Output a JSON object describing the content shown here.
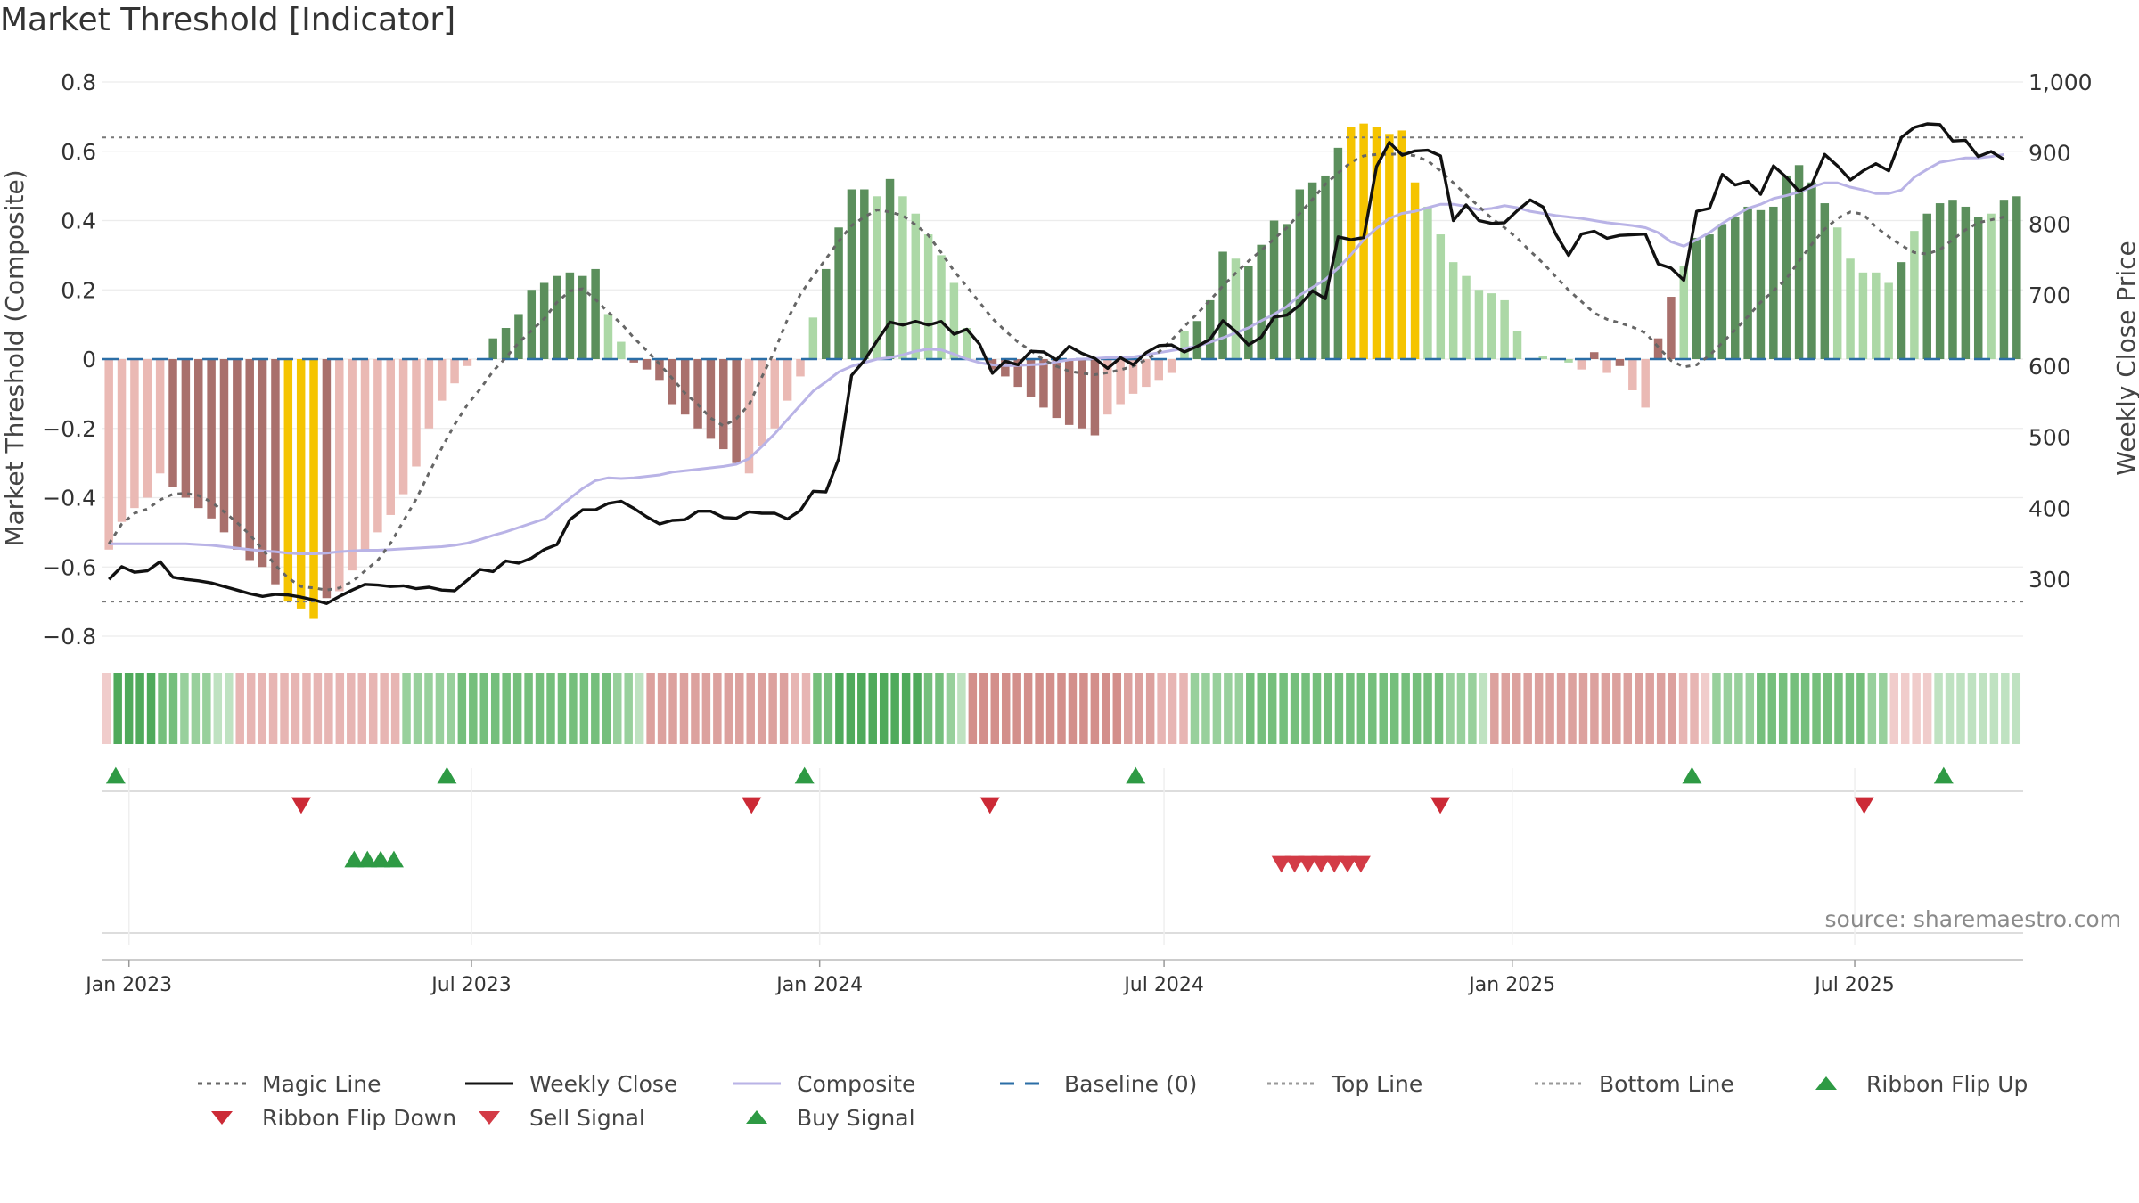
{
  "title": "Market Threshold [Indicator]",
  "source_text": "source: sharemaestro.com",
  "colors": {
    "close": "#111111",
    "composite": "#b9b3e6",
    "magic": "#666666",
    "baseline": "#2b6ea6",
    "threshold": "#777777",
    "gold": "#f5c400",
    "bar_green_dark": "#5b8f5c",
    "bar_green_light": "#acd8a6",
    "bar_red_dark": "#a9706c",
    "bar_red_light": "#eab9b4",
    "signal_up": "#2e9a44",
    "signal_down": "#d33b46"
  },
  "chart_data": {
    "type": "bar+line",
    "x_ticks": [
      "Jan 2023",
      "Jul 2023",
      "Jan 2024",
      "Jul 2024",
      "Jan 2025",
      "Jul 2025"
    ],
    "x_tick_dates": [
      "2023-01-01",
      "2023-07-01",
      "2024-01-01",
      "2024-07-01",
      "2025-01-01",
      "2025-07-01"
    ],
    "x_range": [
      "2022-12-18",
      "2025-09-28"
    ],
    "left_axis": {
      "label": "Market Threshold (Composite)",
      "range": [
        -0.8,
        0.8
      ],
      "ticks": [
        "−0.8",
        "−0.6",
        "−0.4",
        "−0.2",
        "0",
        "0.2",
        "0.4",
        "0.6",
        "0.8"
      ]
    },
    "right_axis": {
      "label": "Weekly Close Price",
      "range": [
        220,
        1000
      ],
      "ticks": [
        "300",
        "400",
        "500",
        "600",
        "700",
        "800",
        "900",
        "1,000"
      ]
    },
    "top_line": 0.64,
    "bottom_line": -0.7,
    "baseline": 0,
    "series": [
      {
        "name": "Composite",
        "values": [
          -0.55,
          -0.47,
          -0.43,
          -0.4,
          -0.33,
          -0.37,
          -0.4,
          -0.43,
          -0.46,
          -0.5,
          -0.55,
          -0.58,
          -0.6,
          -0.65,
          -0.7,
          -0.72,
          -0.75,
          -0.69,
          -0.67,
          -0.61,
          -0.55,
          -0.5,
          -0.45,
          -0.39,
          -0.31,
          -0.2,
          -0.12,
          -0.07,
          -0.02,
          0,
          0.06,
          0.09,
          0.13,
          0.2,
          0.22,
          0.24,
          0.25,
          0.24,
          0.26,
          0.13,
          0.05,
          -0.01,
          -0.03,
          -0.06,
          -0.13,
          -0.16,
          -0.2,
          -0.23,
          -0.26,
          -0.3,
          -0.33,
          -0.25,
          -0.2,
          -0.12,
          -0.05,
          0.12,
          0.26,
          0.38,
          0.49,
          0.49,
          0.47,
          0.52,
          0.47,
          0.42,
          0.36,
          0.3,
          0.22,
          0.09,
          0,
          -0.03,
          -0.05,
          -0.08,
          -0.11,
          -0.14,
          -0.17,
          -0.19,
          -0.2,
          -0.22,
          -0.16,
          -0.13,
          -0.1,
          -0.08,
          -0.06,
          -0.04,
          0.08,
          0.11,
          0.17,
          0.31,
          0.29,
          0.27,
          0.33,
          0.4,
          0.39,
          0.49,
          0.51,
          0.53,
          0.61,
          0.67,
          0.68,
          0.67,
          0.65,
          0.66,
          0.51,
          0.44,
          0.36,
          0.28,
          0.24,
          0.2,
          0.19,
          0.17,
          0.08,
          0,
          0.01,
          0,
          -0.01,
          -0.03,
          0.02,
          -0.04,
          -0.02,
          -0.09,
          -0.14,
          0.06,
          0.18,
          0.27,
          0.35,
          0.36,
          0.39,
          0.41,
          0.44,
          0.43,
          0.44,
          0.53,
          0.56,
          0.51,
          0.45,
          0.38,
          0.29,
          0.25,
          0.25,
          0.22,
          0.28,
          0.37,
          0.42,
          0.45,
          0.46,
          0.44,
          0.41,
          0.42,
          0.46,
          0.47
        ]
      },
      {
        "name": "Weekly Close",
        "values": [
          300,
          318,
          310,
          312,
          325,
          303,
          300,
          298,
          295,
          290,
          285,
          280,
          276,
          279,
          278,
          275,
          271,
          266,
          276,
          285,
          293,
          292,
          290,
          291,
          287,
          289,
          285,
          284,
          299,
          314,
          311,
          326,
          323,
          330,
          342,
          349,
          384,
          398,
          398,
          407,
          410,
          400,
          388,
          378,
          383,
          384,
          396,
          396,
          387,
          386,
          395,
          393,
          393,
          385,
          397,
          424,
          423,
          470,
          587,
          608,
          636,
          662,
          658,
          663,
          658,
          663,
          645,
          652,
          631,
          590,
          607,
          602,
          621,
          620,
          609,
          628,
          618,
          611,
          597,
          612,
          602,
          619,
          629,
          630,
          620,
          628,
          638,
          664,
          649,
          630,
          641,
          669,
          672,
          686,
          706,
          695,
          782,
          778,
          781,
          881,
          915,
          897,
          903,
          904,
          896,
          805,
          827,
          805,
          801,
          802,
          819,
          834,
          824,
          786,
          756,
          786,
          790,
          780,
          784,
          785,
          786,
          744,
          738,
          721,
          818,
          822,
          870,
          855,
          860,
          842,
          882,
          866,
          846,
          856,
          898,
          882,
          862,
          875,
          885,
          875,
          922,
          936,
          941,
          940,
          917,
          918,
          895,
          902,
          891
        ],
        "color": "#111111"
      },
      {
        "name": "Composite",
        "display": "line",
        "values": [
          350,
          350,
          350,
          350,
          350,
          350,
          350,
          349,
          348,
          346,
          344,
          342,
          340,
          339,
          337,
          336,
          336,
          337,
          339,
          340,
          341,
          341,
          342,
          343,
          344,
          345,
          346,
          348,
          351,
          356,
          362,
          367,
          373,
          379,
          385,
          399,
          414,
          428,
          439,
          443,
          442,
          443,
          445,
          447,
          451,
          453,
          455,
          457,
          459,
          462,
          470,
          487,
          505,
          525,
          545,
          565,
          578,
          592,
          600,
          605,
          610,
          612,
          616,
          621,
          624,
          623,
          617,
          610,
          605,
          602,
          601,
          601,
          602,
          603,
          606,
          609,
          610,
          611,
          612,
          612,
          613,
          616,
          619,
          622,
          625,
          628,
          634,
          640,
          647,
          654,
          664,
          673,
          684,
          700,
          711,
          722,
          738,
          757,
          778,
          794,
          808,
          815,
          818,
          823,
          828,
          828,
          825,
          820,
          822,
          826,
          823,
          818,
          815,
          812,
          810,
          808,
          805,
          802,
          800,
          798,
          795,
          788,
          775,
          769,
          778,
          788,
          801,
          812,
          822,
          828,
          836,
          840,
          845,
          852,
          858,
          858,
          852,
          848,
          843,
          843,
          848,
          866,
          877,
          887,
          890,
          893,
          893,
          895,
          898
        ]
      },
      {
        "name": "Magic Line",
        "values": [
          350,
          378,
          393,
          399,
          412,
          420,
          421,
          418,
          409,
          395,
          380,
          363,
          342,
          320,
          302,
          290,
          288,
          285,
          288,
          297,
          312,
          327,
          351,
          382,
          413,
          450,
          485,
          518,
          546,
          568,
          593,
          612,
          633,
          650,
          667,
          690,
          706,
          709,
          694,
          676,
          660,
          640,
          622,
          603,
          583,
          562,
          546,
          527,
          516,
          526,
          546,
          585,
          622,
          666,
          701,
          727,
          751,
          776,
          798,
          810,
          820,
          817,
          812,
          799,
          784,
          760,
          734,
          712,
          690,
          667,
          650,
          634,
          622,
          609,
          600,
          593,
          590,
          588,
          591,
          595,
          600,
          609,
          620,
          637,
          656,
          674,
          693,
          713,
          731,
          748,
          763,
          779,
          795,
          815,
          835,
          856,
          872,
          887,
          896,
          898,
          898,
          899,
          896,
          889,
          875,
          858,
          841,
          825,
          808,
          795,
          780,
          762,
          745,
          726,
          707,
          691,
          675,
          666,
          661,
          655,
          647,
          627,
          608,
          599,
          602,
          615,
          633,
          651,
          670,
          690,
          706,
          723,
          748,
          772,
          793,
          808,
          817,
          814,
          796,
          782,
          770,
          760,
          758,
          764,
          778,
          792,
          802,
          806,
          810
        ],
        "style": "dashed"
      }
    ],
    "bar_shades": [
      "LR",
      "LR",
      "LR",
      "LR",
      "LR",
      "DR",
      "DR",
      "DR",
      "DR",
      "DR",
      "DR",
      "DR",
      "DR",
      "DR",
      "G",
      "G",
      "G",
      "DR",
      "LR",
      "LR",
      "LR",
      "LR",
      "LR",
      "LR",
      "LR",
      "LR",
      "LR",
      "LR",
      "LR",
      "LR",
      "DG",
      "DG",
      "DG",
      "DG",
      "DG",
      "DG",
      "DG",
      "DG",
      "DG",
      "LG",
      "LG",
      "DR",
      "DR",
      "DR",
      "DR",
      "DR",
      "DR",
      "DR",
      "DR",
      "DR",
      "LR",
      "LR",
      "LR",
      "LR",
      "LR",
      "LG",
      "DG",
      "DG",
      "DG",
      "DG",
      "LG",
      "DG",
      "LG",
      "LG",
      "LG",
      "LG",
      "LG",
      "LG",
      "LR",
      "DR",
      "DR",
      "DR",
      "DR",
      "DR",
      "DR",
      "DR",
      "DR",
      "DR",
      "LR",
      "LR",
      "LR",
      "LR",
      "LR",
      "LR",
      "LG",
      "DG",
      "DG",
      "DG",
      "LG",
      "DG",
      "DG",
      "DG",
      "DG",
      "DG",
      "DG",
      "DG",
      "DG",
      "G",
      "G",
      "G",
      "G",
      "G",
      "G",
      "LG",
      "LG",
      "LG",
      "LG",
      "LG",
      "LG",
      "LG",
      "LG",
      "LG",
      "LG",
      "DG",
      "LG",
      "LR",
      "DR",
      "LR",
      "DR",
      "LR",
      "LR",
      "DR",
      "DR",
      "LG",
      "DG",
      "DG",
      "DG",
      "DG",
      "DG",
      "DG",
      "DG",
      "DG",
      "DG",
      "DG",
      "DG",
      "LG",
      "LG",
      "LG",
      "LG",
      "LG",
      "DG",
      "LG",
      "DG",
      "DG",
      "DG",
      "DG",
      "DG",
      "LG",
      "DG",
      "DG",
      "DG",
      "DG"
    ],
    "ribbon": [
      "r1",
      "g4",
      "g4",
      "g4",
      "g4",
      "g3",
      "g3",
      "g2",
      "g2",
      "g2",
      "g1",
      "g1",
      "r2",
      "r2",
      "r2",
      "r2",
      "r2",
      "r2",
      "r2",
      "r2",
      "r2",
      "r2",
      "r2",
      "r2",
      "r2",
      "r2",
      "r2",
      "g2",
      "g2",
      "g2",
      "g2",
      "g2",
      "g3",
      "g3",
      "g3",
      "g3",
      "g3",
      "g3",
      "g3",
      "g3",
      "g3",
      "g3",
      "g3",
      "g3",
      "g3",
      "g3",
      "g2",
      "g2",
      "g1",
      "r3",
      "r3",
      "r3",
      "r3",
      "r3",
      "r3",
      "r3",
      "r3",
      "r3",
      "r3",
      "r3",
      "r3",
      "r3",
      "r2",
      "r2",
      "g3",
      "g3",
      "g4",
      "g4",
      "g4",
      "g4",
      "g4",
      "g4",
      "g4",
      "g4",
      "g3",
      "g3",
      "g2",
      "g1",
      "r4",
      "r4",
      "r4",
      "r4",
      "r4",
      "r4",
      "r4",
      "r4",
      "r4",
      "r4",
      "r4",
      "r4",
      "r4",
      "r4",
      "r3",
      "r3",
      "r3",
      "r2",
      "r2",
      "r2",
      "g2",
      "g2",
      "g2",
      "g2",
      "g2",
      "g3",
      "g3",
      "g3",
      "g3",
      "g3",
      "g3",
      "g3",
      "g3",
      "g3",
      "g3",
      "g3",
      "g3",
      "g3",
      "g3",
      "g3",
      "g3",
      "g3",
      "g3",
      "g2",
      "g2",
      "g2",
      "g1",
      "r3",
      "r3",
      "r3",
      "r3",
      "r3",
      "r3",
      "r3",
      "r3",
      "r3",
      "r3",
      "r3",
      "r3",
      "r3",
      "r3",
      "r3",
      "r3",
      "r3",
      "r2",
      "r2",
      "r1",
      "g2",
      "g2",
      "g2",
      "g2",
      "g3",
      "g3",
      "g3",
      "g3",
      "g3",
      "g3",
      "g3",
      "g3",
      "g3",
      "g3",
      "g2",
      "g2",
      "r1",
      "r1",
      "r1",
      "r1",
      "g1",
      "g1",
      "g1",
      "g1",
      "g1",
      "g1",
      "g1",
      "g1"
    ],
    "ribbon_flip_up": [
      "2022-12-25",
      "2023-06-18",
      "2023-12-24",
      "2024-06-16",
      "2025-04-06",
      "2025-08-17"
    ],
    "ribbon_flip_down": [
      "2023-04-02",
      "2023-11-26",
      "2024-03-31",
      "2024-11-24",
      "2025-07-06"
    ],
    "buy_signals": [
      "2023-04-30",
      "2023-05-07",
      "2023-05-14",
      "2023-05-21"
    ],
    "sell_signals": [
      "2024-09-01",
      "2024-09-08",
      "2024-09-15",
      "2024-09-22",
      "2024-09-29",
      "2024-10-06",
      "2024-10-13"
    ],
    "legend": [
      {
        "label": "Magic Line",
        "symbol": "dash-line",
        "color": "#666666"
      },
      {
        "label": "Weekly Close",
        "symbol": "solid-line",
        "color": "#111111"
      },
      {
        "label": "Composite",
        "symbol": "solid-line",
        "color": "#b9b3e6"
      },
      {
        "label": "Baseline (0)",
        "symbol": "long-dash-line",
        "color": "#2b6ea6"
      },
      {
        "label": "Top Line",
        "symbol": "dot-line",
        "color": "#999999"
      },
      {
        "label": "Bottom Line",
        "symbol": "dot-line",
        "color": "#999999"
      },
      {
        "label": "Ribbon Flip Up",
        "symbol": "triangle-up",
        "color": "#2e9a44"
      },
      {
        "label": "Ribbon Flip Down",
        "symbol": "triangle-down",
        "color": "#cc2a36"
      },
      {
        "label": "Sell Signal",
        "symbol": "triangle-down",
        "color": "#d33b46"
      },
      {
        "label": "Buy Signal",
        "symbol": "triangle-up",
        "color": "#2e9a44"
      }
    ]
  }
}
